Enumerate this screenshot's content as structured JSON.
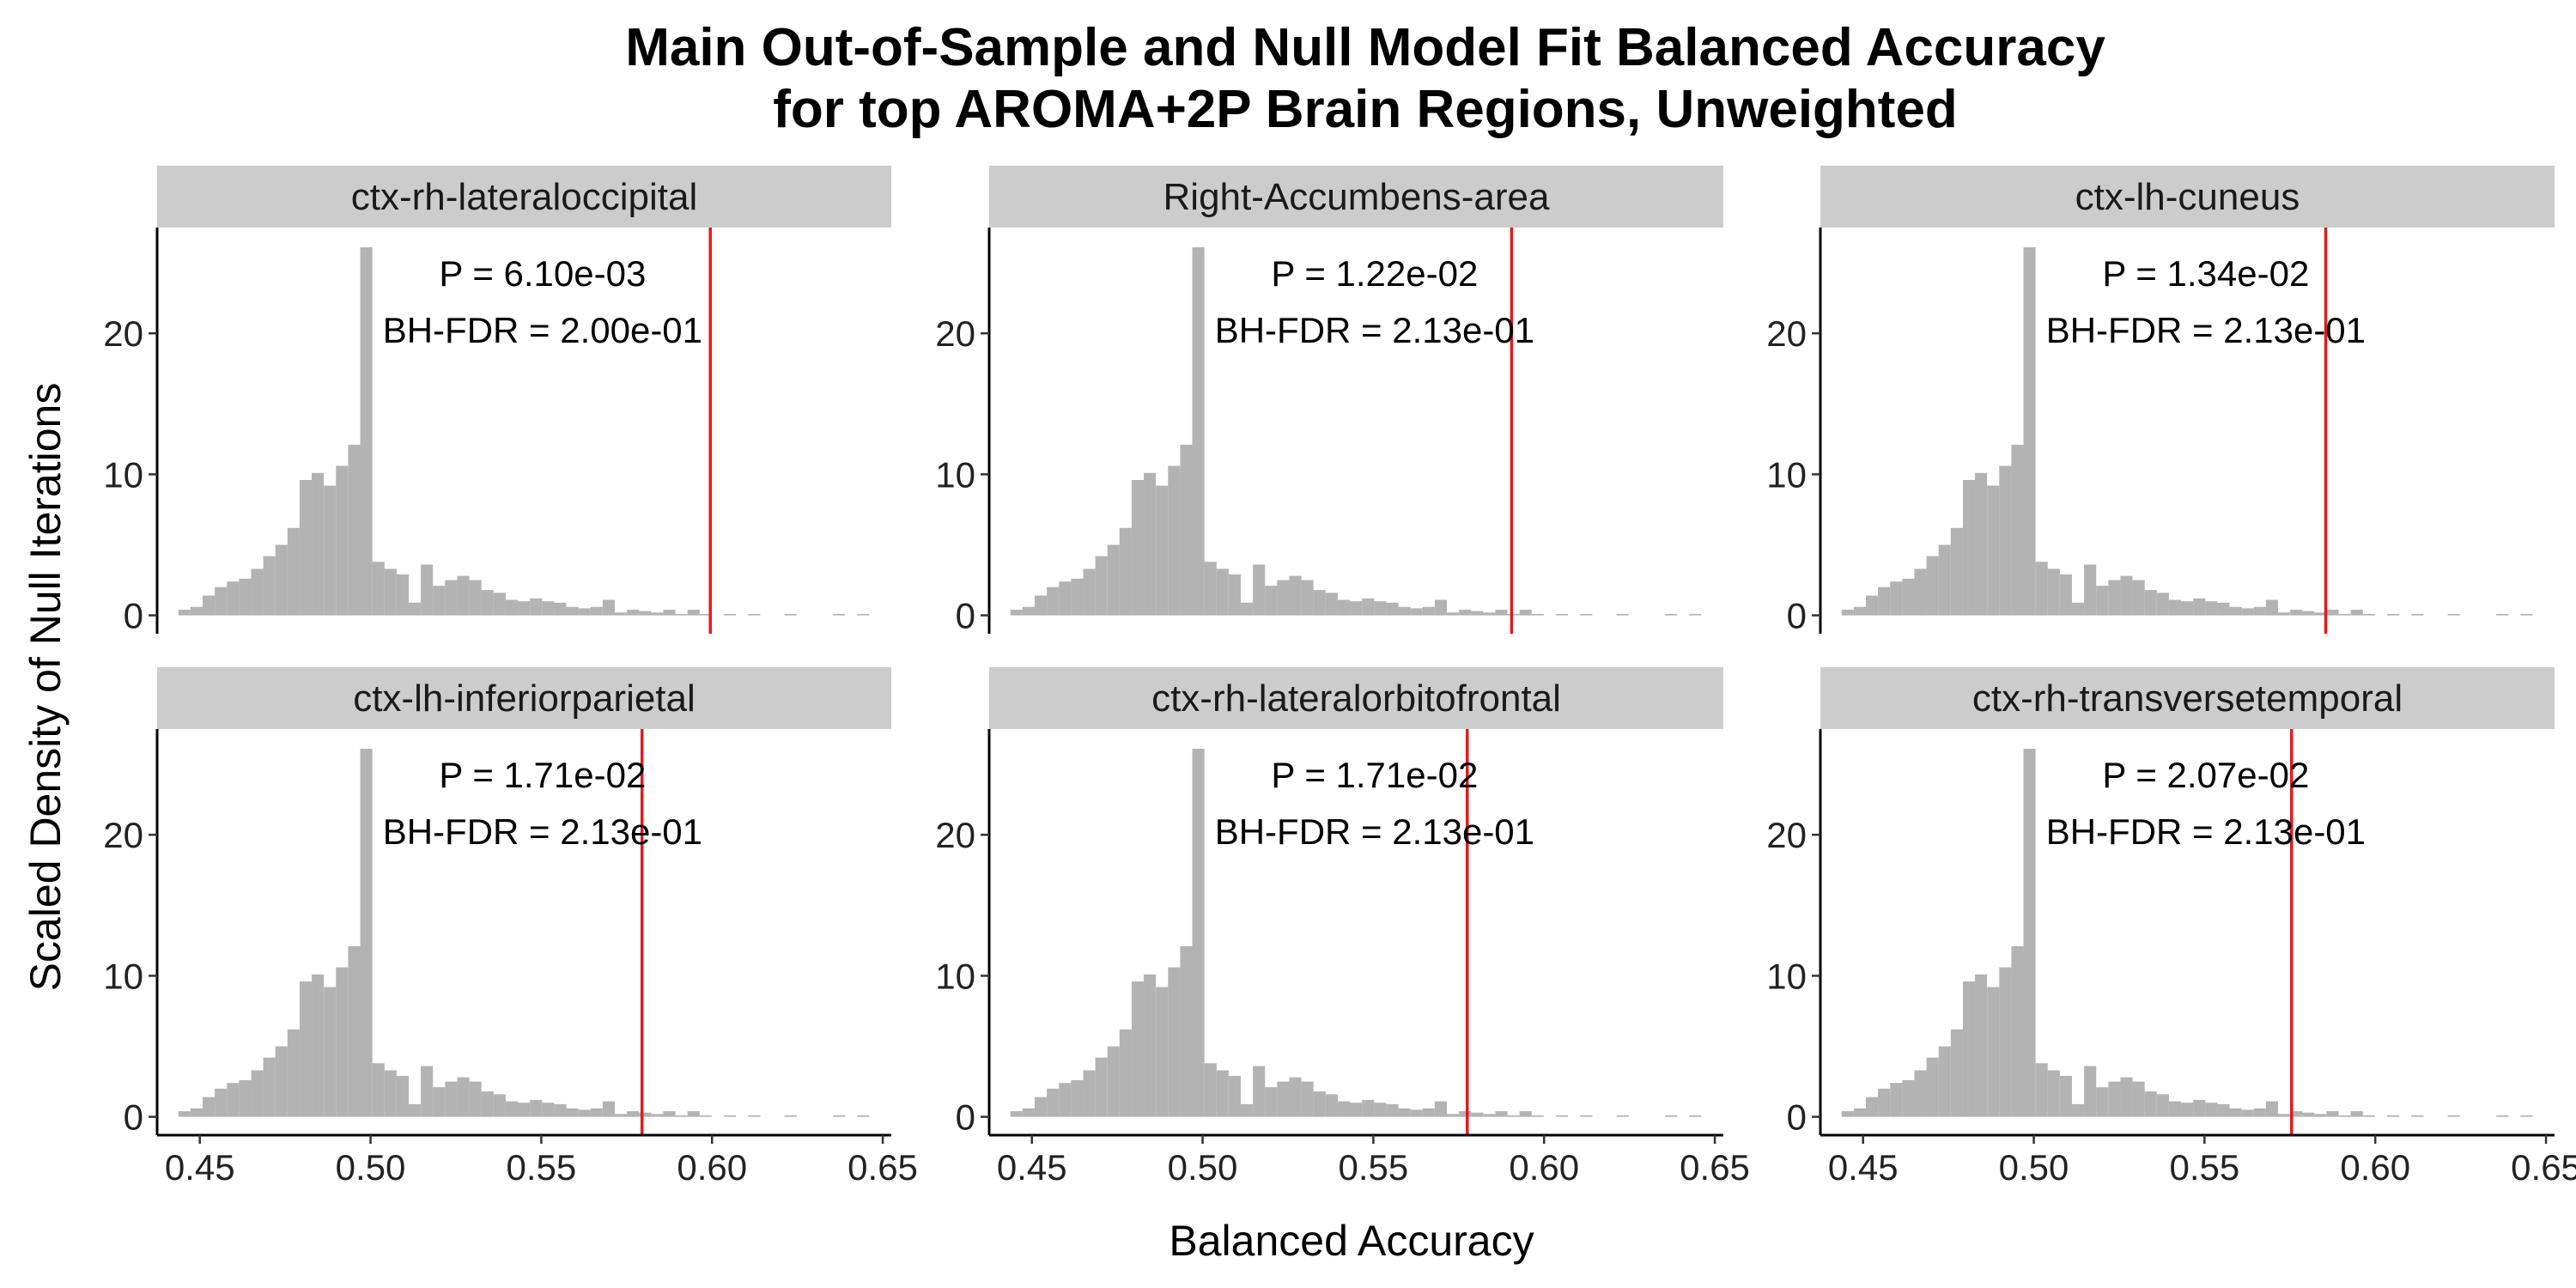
{
  "chart_data": {
    "type": "bar",
    "title_line1": "Main Out-of-Sample and Null Model Fit Balanced Accuracy",
    "title_line2": "for top AROMA+2P Brain Regions, Unweighted",
    "xlabel": "Balanced Accuracy",
    "ylabel": "Scaled Density of Null Iterations",
    "xlim": [
      0.4375,
      0.6525
    ],
    "ylim": [
      -1.3,
      27.5
    ],
    "x_ticks": [
      0.45,
      0.5,
      0.55,
      0.6,
      0.65
    ],
    "x_tick_labels": [
      "0.45",
      "0.50",
      "0.55",
      "0.60",
      "0.65"
    ],
    "y_ticks": [
      0,
      10,
      20
    ],
    "y_tick_labels": [
      "0",
      "10",
      "20"
    ],
    "grid": false,
    "layout": "3 columns x 2 rows",
    "bar_color": "#b3b3b3",
    "observed_line_color": "#e41a1c",
    "strip_color": "#cccccc",
    "null_histogram": {
      "bin_width": 0.00355,
      "bin_centers": [
        0.4455,
        0.44905,
        0.4526,
        0.45615,
        0.4597,
        0.46325,
        0.4668,
        0.47035,
        0.4739,
        0.47745,
        0.481,
        0.48455,
        0.4881,
        0.49165,
        0.4952,
        0.49875,
        0.5023,
        0.50585,
        0.5094,
        0.51295,
        0.5165,
        0.52005,
        0.5236,
        0.52715,
        0.5307,
        0.53425,
        0.5378,
        0.54135,
        0.5449,
        0.54845,
        0.552,
        0.55555,
        0.5591,
        0.56265,
        0.5662,
        0.56975,
        0.5733,
        0.57685,
        0.5804,
        0.58395,
        0.5875,
        0.59105,
        0.5946,
        0.59815,
        0.6017,
        0.60525,
        0.6088,
        0.61235,
        0.6159,
        0.61945,
        0.623,
        0.62655,
        0.6301,
        0.63365,
        0.6372,
        0.64075,
        0.6443
      ],
      "density": [
        0.4,
        0.6,
        1.4,
        2.0,
        2.4,
        2.6,
        3.3,
        4.2,
        5.0,
        6.2,
        9.6,
        10.1,
        9.2,
        10.6,
        12.1,
        26.1,
        3.8,
        3.3,
        2.9,
        0.9,
        3.6,
        2.1,
        2.5,
        2.8,
        2.5,
        1.8,
        1.6,
        1.1,
        1.0,
        1.2,
        1.0,
        0.9,
        0.6,
        0.5,
        0.6,
        1.1,
        0.2,
        0.4,
        0.3,
        0.2,
        0.4,
        0.1,
        0.4,
        0.1,
        0,
        0.1,
        0,
        0.1,
        0,
        0,
        0.1,
        0,
        0,
        0,
        0.1,
        0,
        0.1
      ]
    },
    "panels": [
      {
        "name": "ctx-rh-lateraloccipital",
        "observed": 0.5995,
        "p_label": "P = 6.10e-03",
        "fdr_label": "BH-FDR = 2.00e-01"
      },
      {
        "name": "Right-Accumbens-area",
        "observed": 0.5905,
        "p_label": "P = 1.22e-02",
        "fdr_label": "BH-FDR = 2.13e-01"
      },
      {
        "name": "ctx-lh-cuneus",
        "observed": 0.5855,
        "p_label": "P = 1.34e-02",
        "fdr_label": "BH-FDR = 2.13e-01"
      },
      {
        "name": "ctx-lh-inferiorparietal",
        "observed": 0.5795,
        "p_label": "P = 1.71e-02",
        "fdr_label": "BH-FDR = 2.13e-01"
      },
      {
        "name": "ctx-rh-lateralorbitofrontal",
        "observed": 0.5775,
        "p_label": "P = 1.71e-02",
        "fdr_label": "BH-FDR = 2.13e-01"
      },
      {
        "name": "ctx-rh-transversetemporal",
        "observed": 0.5755,
        "p_label": "P = 2.07e-02",
        "fdr_label": "BH-FDR = 2.13e-01"
      }
    ]
  }
}
